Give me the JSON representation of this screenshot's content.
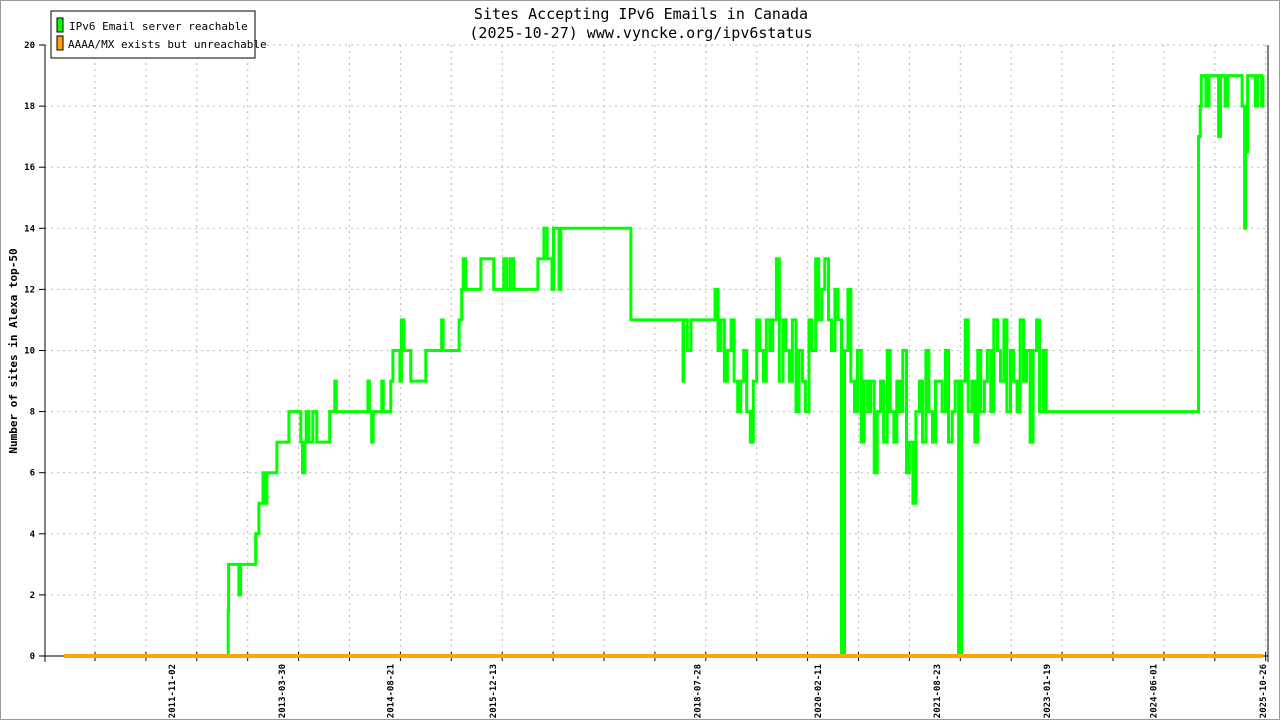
{
  "chart_data": {
    "type": "line",
    "title": "Sites Accepting IPv6 Emails in Canada",
    "subtitle": "(2025-10-27) www.vyncke.org/ipv6status",
    "xlabel": "",
    "ylabel": "Number of sites in Alexa top-50",
    "ylim": [
      0,
      20
    ],
    "yticks": [
      "0",
      "2",
      "4",
      "6",
      "8",
      "10",
      "12",
      "14",
      "16",
      "18",
      "20"
    ],
    "xtick_labels": [
      "2011-11-02",
      "2013-03-30",
      "2014-08-21",
      "2015-12-13",
      "2018-07-28",
      "2020-02-11",
      "2021-08-23",
      "2023-01-19",
      "2024-06-01",
      "2025-10-26"
    ],
    "grid": true,
    "legend_position": "top-left",
    "series": [
      {
        "name": "IPv6 Email server reachable",
        "color": "#00ff00",
        "step": true,
        "points": [
          [
            "2012-07-20",
            0
          ],
          [
            "2012-07-22",
            1.5
          ],
          [
            "2012-07-24",
            3
          ],
          [
            "2012-09-10",
            2
          ],
          [
            "2012-09-18",
            3
          ],
          [
            "2012-11-19",
            3
          ],
          [
            "2012-11-28",
            4
          ],
          [
            "2012-12-13",
            5
          ],
          [
            "2013-01-01",
            6
          ],
          [
            "2013-01-10",
            5
          ],
          [
            "2013-01-19",
            6
          ],
          [
            "2013-02-07",
            6
          ],
          [
            "2013-03-07",
            7
          ],
          [
            "2013-05-02",
            8
          ],
          [
            "2013-06-13",
            8
          ],
          [
            "2013-06-27",
            7
          ],
          [
            "2013-07-05",
            6
          ],
          [
            "2013-07-16",
            7
          ],
          [
            "2013-07-22",
            8
          ],
          [
            "2013-08-04",
            7
          ],
          [
            "2013-08-22",
            8
          ],
          [
            "2013-09-10",
            7
          ],
          [
            "2013-11-09",
            8
          ],
          [
            "2013-12-03",
            9
          ],
          [
            "2013-12-10",
            8
          ],
          [
            "2014-05-07",
            9
          ],
          [
            "2014-05-14",
            8
          ],
          [
            "2014-05-25",
            7
          ],
          [
            "2014-06-01",
            8
          ],
          [
            "2014-07-11",
            9
          ],
          [
            "2014-07-18",
            8
          ],
          [
            "2014-08-22",
            9
          ],
          [
            "2014-09-01",
            10
          ],
          [
            "2014-10-04",
            9
          ],
          [
            "2014-10-11",
            11
          ],
          [
            "2014-10-22",
            10
          ],
          [
            "2014-11-05",
            10
          ],
          [
            "2014-11-24",
            9
          ],
          [
            "2015-02-02",
            10
          ],
          [
            "2015-04-17",
            11
          ],
          [
            "2015-04-24",
            10
          ],
          [
            "2015-07-01",
            10
          ],
          [
            "2015-07-08",
            11
          ],
          [
            "2015-07-20",
            12
          ],
          [
            "2015-07-27",
            13
          ],
          [
            "2015-08-08",
            12
          ],
          [
            "2015-10-18",
            13
          ],
          [
            "2015-12-17",
            12
          ],
          [
            "2016-02-02",
            13
          ],
          [
            "2016-02-17",
            12
          ],
          [
            "2016-03-04",
            13
          ],
          [
            "2016-03-19",
            12
          ],
          [
            "2016-04-22",
            12
          ],
          [
            "2016-07-11",
            13
          ],
          [
            "2016-08-08",
            14
          ],
          [
            "2016-08-23",
            13
          ],
          [
            "2016-09-15",
            12
          ],
          [
            "2016-09-22",
            14
          ],
          [
            "2016-10-18",
            12
          ],
          [
            "2016-10-26",
            14
          ],
          [
            "2016-11-19",
            14
          ],
          [
            "2016-12-27",
            14
          ],
          [
            "2017-09-19",
            11
          ],
          [
            "2017-11-05",
            11
          ],
          [
            "2018-05-21",
            9
          ],
          [
            "2018-05-24",
            11
          ],
          [
            "2018-06-10",
            10
          ],
          [
            "2018-06-27",
            11
          ],
          [
            "2018-08-13",
            11
          ],
          [
            "2018-10-18",
            12
          ],
          [
            "2018-11-01",
            10
          ],
          [
            "2018-11-15",
            11
          ],
          [
            "2018-12-01",
            9
          ],
          [
            "2018-12-15",
            10
          ],
          [
            "2019-01-01",
            11
          ],
          [
            "2019-01-15",
            9
          ],
          [
            "2019-02-01",
            8
          ],
          [
            "2019-02-15",
            9
          ],
          [
            "2019-03-01",
            10
          ],
          [
            "2019-03-15",
            8
          ],
          [
            "2019-04-01",
            7
          ],
          [
            "2019-04-15",
            9
          ],
          [
            "2019-05-01",
            11
          ],
          [
            "2019-05-15",
            10
          ],
          [
            "2019-06-01",
            9
          ],
          [
            "2019-06-15",
            11
          ],
          [
            "2019-07-01",
            10
          ],
          [
            "2019-07-15",
            11
          ],
          [
            "2019-08-01",
            13
          ],
          [
            "2019-08-15",
            9
          ],
          [
            "2019-09-01",
            11
          ],
          [
            "2019-09-15",
            10
          ],
          [
            "2019-10-01",
            9
          ],
          [
            "2019-10-15",
            11
          ],
          [
            "2019-11-01",
            8
          ],
          [
            "2019-11-15",
            10
          ],
          [
            "2019-12-01",
            9
          ],
          [
            "2019-12-15",
            8
          ],
          [
            "2020-01-01",
            11
          ],
          [
            "2020-01-15",
            10
          ],
          [
            "2020-02-01",
            13
          ],
          [
            "2020-02-15",
            11
          ],
          [
            "2020-03-01",
            12
          ],
          [
            "2020-03-15",
            13
          ],
          [
            "2020-04-01",
            11
          ],
          [
            "2020-04-15",
            10
          ],
          [
            "2020-05-01",
            12
          ],
          [
            "2020-05-15",
            11
          ],
          [
            "2020-06-01",
            0
          ],
          [
            "2020-06-15",
            10
          ],
          [
            "2020-07-01",
            12
          ],
          [
            "2020-07-15",
            9
          ],
          [
            "2020-08-01",
            8
          ],
          [
            "2020-08-15",
            10
          ],
          [
            "2020-09-01",
            7
          ],
          [
            "2020-09-15",
            9
          ],
          [
            "2020-10-01",
            8
          ],
          [
            "2020-10-15",
            9
          ],
          [
            "2020-11-01",
            6
          ],
          [
            "2020-11-15",
            8
          ],
          [
            "2020-12-01",
            9
          ],
          [
            "2020-12-15",
            7
          ],
          [
            "2021-01-01",
            10
          ],
          [
            "2021-01-15",
            8
          ],
          [
            "2021-02-01",
            7
          ],
          [
            "2021-02-15",
            9
          ],
          [
            "2021-03-01",
            8
          ],
          [
            "2021-03-15",
            10
          ],
          [
            "2021-04-01",
            6
          ],
          [
            "2021-04-15",
            7
          ],
          [
            "2021-05-01",
            5
          ],
          [
            "2021-05-15",
            8
          ],
          [
            "2021-06-01",
            9
          ],
          [
            "2021-06-15",
            7
          ],
          [
            "2021-07-01",
            10
          ],
          [
            "2021-07-15",
            8
          ],
          [
            "2021-08-01",
            7
          ],
          [
            "2021-08-15",
            9
          ],
          [
            "2021-09-01",
            9
          ],
          [
            "2021-09-15",
            8
          ],
          [
            "2021-10-01",
            10
          ],
          [
            "2021-10-15",
            7
          ],
          [
            "2021-11-01",
            8
          ],
          [
            "2021-11-15",
            9
          ],
          [
            "2021-12-01",
            0
          ],
          [
            "2021-12-15",
            9
          ],
          [
            "2022-01-01",
            11
          ],
          [
            "2022-01-15",
            8
          ],
          [
            "2022-02-01",
            9
          ],
          [
            "2022-02-15",
            7
          ],
          [
            "2022-03-01",
            10
          ],
          [
            "2022-03-15",
            8
          ],
          [
            "2022-04-01",
            9
          ],
          [
            "2022-04-15",
            10
          ],
          [
            "2022-05-01",
            8
          ],
          [
            "2022-05-15",
            11
          ],
          [
            "2022-06-01",
            10
          ],
          [
            "2022-06-15",
            9
          ],
          [
            "2022-07-01",
            11
          ],
          [
            "2022-07-15",
            8
          ],
          [
            "2022-08-01",
            10
          ],
          [
            "2022-08-15",
            9
          ],
          [
            "2022-09-01",
            8
          ],
          [
            "2022-09-15",
            11
          ],
          [
            "2022-10-01",
            9
          ],
          [
            "2022-10-15",
            10
          ],
          [
            "2022-11-01",
            7
          ],
          [
            "2022-11-15",
            10
          ],
          [
            "2022-12-01",
            11
          ],
          [
            "2022-12-15",
            8
          ],
          [
            "2023-01-01",
            10
          ],
          [
            "2023-01-15",
            8
          ],
          [
            "2024-12-27",
            8
          ],
          [
            "2024-12-28",
            17
          ],
          [
            "2025-01-05",
            18
          ],
          [
            "2025-01-10",
            19
          ],
          [
            "2025-02-01",
            18
          ],
          [
            "2025-02-15",
            19
          ],
          [
            "2025-03-01",
            19
          ],
          [
            "2025-04-01",
            17
          ],
          [
            "2025-04-10",
            19
          ],
          [
            "2025-05-01",
            18
          ],
          [
            "2025-05-15",
            19
          ],
          [
            "2025-07-01",
            19
          ],
          [
            "2025-07-20",
            18
          ],
          [
            "2025-08-01",
            14
          ],
          [
            "2025-08-05",
            16.5
          ],
          [
            "2025-08-15",
            19
          ],
          [
            "2025-09-01",
            19
          ],
          [
            "2025-09-20",
            18
          ],
          [
            "2025-10-01",
            19
          ],
          [
            "2025-10-20",
            18
          ],
          [
            "2025-10-26",
            19
          ]
        ]
      },
      {
        "name": "AAAA/MX exists but unreachable",
        "color": "#ffa500",
        "step": true,
        "points": [
          [
            "2010-06-15",
            0
          ],
          [
            "2025-10-26",
            0
          ]
        ]
      }
    ]
  }
}
